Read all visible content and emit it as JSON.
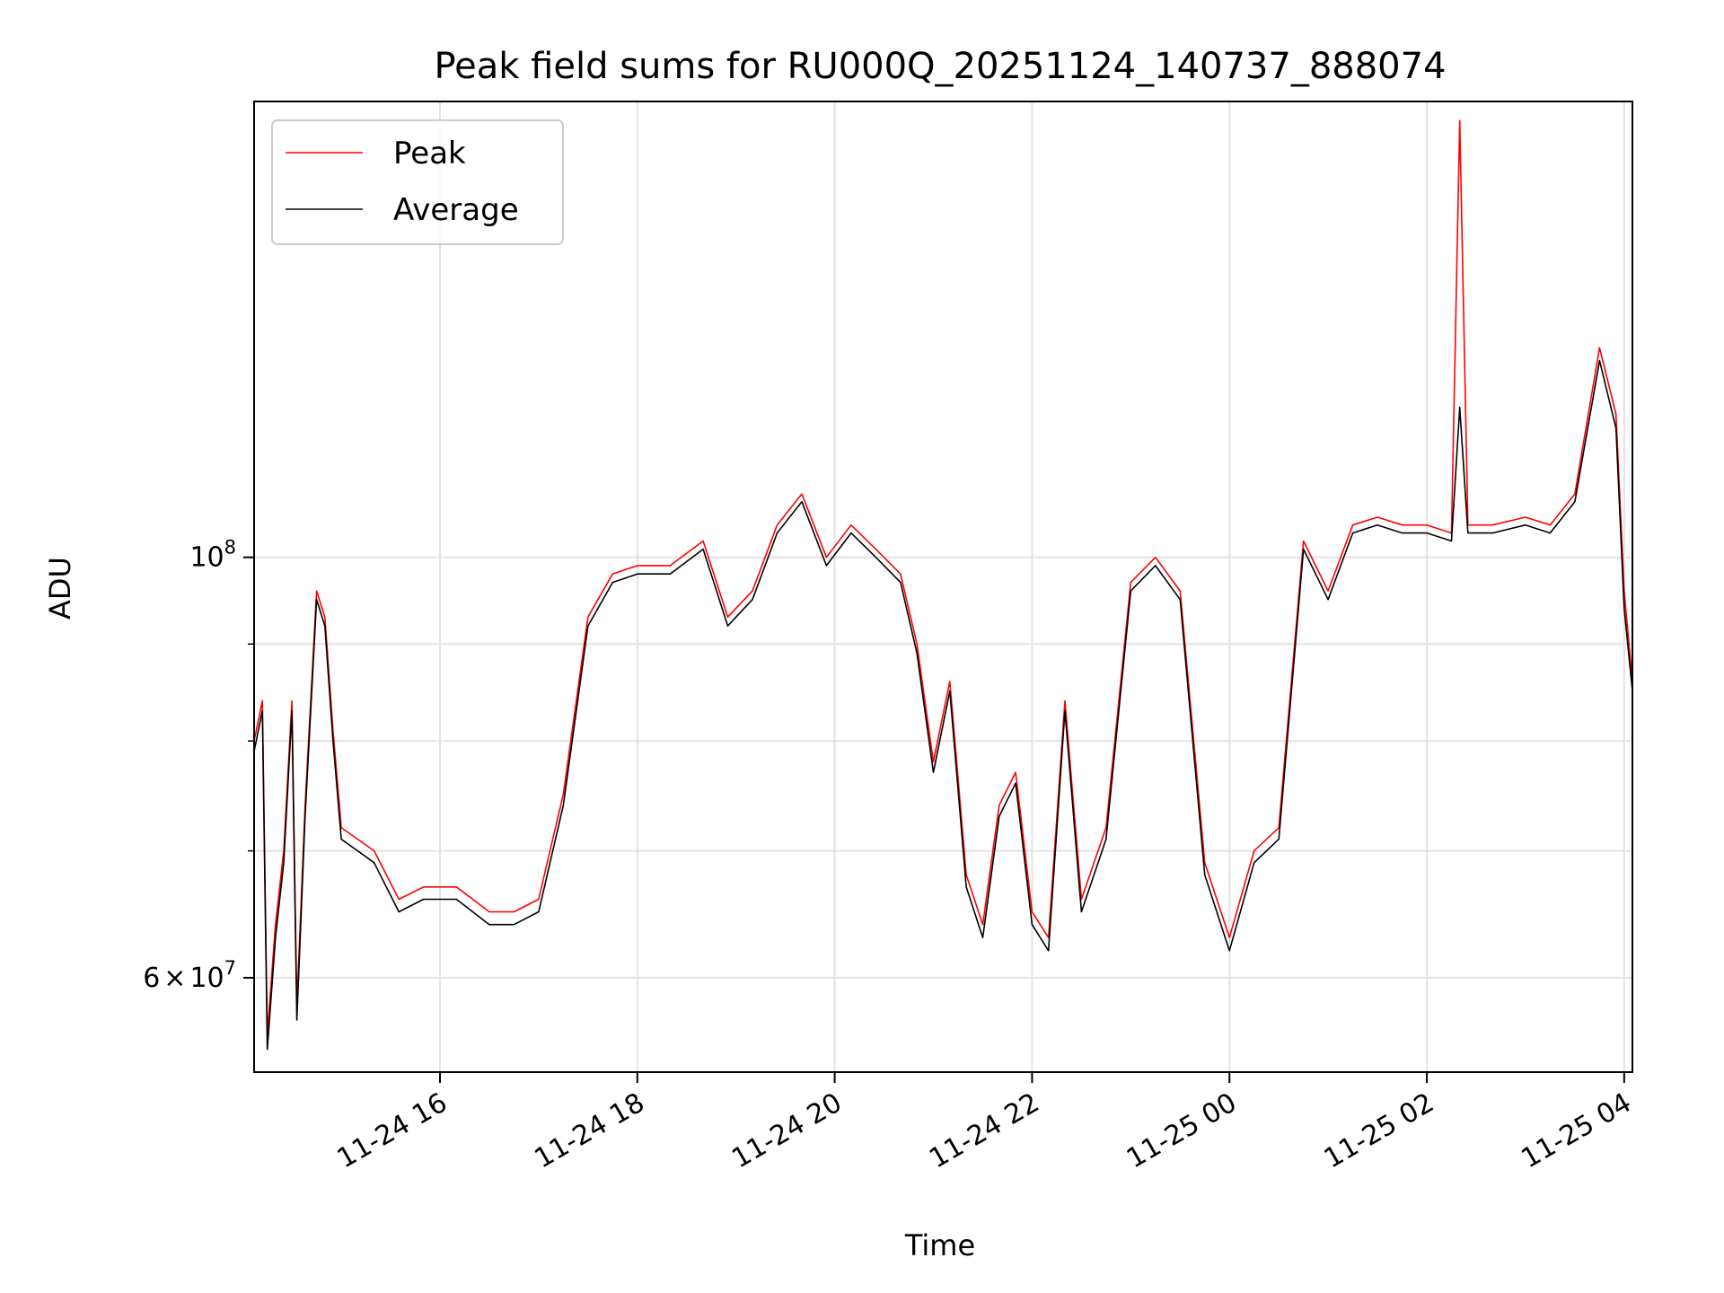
{
  "chart_data": {
    "type": "line",
    "title": "Peak field sums for RU000Q_20251124_140737_888074",
    "xlabel": "Time",
    "ylabel": "ADU",
    "yscale": "log",
    "ylim": [
      53500000,
      174000000
    ],
    "xlim": [
      "11-24 14:07",
      "11-25 04:05"
    ],
    "x_ticks": [
      "11-24 16",
      "11-24 18",
      "11-24 20",
      "11-24 22",
      "11-25 00",
      "11-25 02",
      "11-25 04"
    ],
    "y_major_ticks": [
      {
        "value": 100000000,
        "label_base": "10",
        "label_exp": "8"
      },
      {
        "value": 60000000,
        "label_mant": "6",
        "label_times": "×",
        "label_base": "10",
        "label_exp": "7"
      }
    ],
    "y_minor_ticks": [
      60000000,
      70000000,
      80000000,
      90000000,
      100000000
    ],
    "grid": true,
    "legend_position": "upper-left",
    "x": [
      "11-24 14:07",
      "11-24 14:12",
      "11-24 14:15",
      "11-24 14:20",
      "11-24 14:25",
      "11-24 14:30",
      "11-24 14:33",
      "11-24 14:38",
      "11-24 14:45",
      "11-24 14:50",
      "11-24 14:55",
      "11-24 15:00",
      "11-24 15:10",
      "11-24 15:20",
      "11-24 15:35",
      "11-24 15:50",
      "11-24 16:10",
      "11-24 16:30",
      "11-24 16:45",
      "11-24 17:00",
      "11-24 17:15",
      "11-24 17:30",
      "11-24 17:45",
      "11-24 18:00",
      "11-24 18:20",
      "11-24 18:40",
      "11-24 18:55",
      "11-24 19:10",
      "11-24 19:25",
      "11-24 19:40",
      "11-24 19:55",
      "11-24 20:10",
      "11-24 20:25",
      "11-24 20:40",
      "11-24 20:50",
      "11-24 21:00",
      "11-24 21:10",
      "11-24 21:20",
      "11-24 21:30",
      "11-24 21:40",
      "11-24 21:50",
      "11-24 22:00",
      "11-24 22:10",
      "11-24 22:20",
      "11-24 22:30",
      "11-24 22:45",
      "11-24 23:00",
      "11-24 23:15",
      "11-24 23:30",
      "11-24 23:45",
      "11-25 00:00",
      "11-25 00:15",
      "11-25 00:30",
      "11-25 00:45",
      "11-25 01:00",
      "11-25 01:15",
      "11-25 01:30",
      "11-25 01:45",
      "11-25 02:00",
      "11-25 02:15",
      "11-25 02:20",
      "11-25 02:25",
      "11-25 02:40",
      "11-25 03:00",
      "11-25 03:15",
      "11-25 03:30",
      "11-25 03:45",
      "11-25 03:55",
      "11-25 04:00",
      "11-25 04:05"
    ],
    "series": [
      {
        "name": "Peak",
        "color": "#ff0000",
        "values": [
          80000000,
          84000000,
          56000000,
          64000000,
          70000000,
          84000000,
          58000000,
          74000000,
          96000000,
          93000000,
          81000000,
          72000000,
          71000000,
          70000000,
          66000000,
          67000000,
          67000000,
          65000000,
          65000000,
          66000000,
          75000000,
          93000000,
          98000000,
          99000000,
          99000000,
          102000000,
          93000000,
          96000000,
          104000000,
          108000000,
          100000000,
          104000000,
          101000000,
          98000000,
          90000000,
          78000000,
          86000000,
          68000000,
          64000000,
          74000000,
          77000000,
          65000000,
          63000000,
          84000000,
          66000000,
          72000000,
          97000000,
          100000000,
          96000000,
          69000000,
          63000000,
          70000000,
          72000000,
          102000000,
          96000000,
          104000000,
          105000000,
          104000000,
          104000000,
          103000000,
          170000000,
          104000000,
          104000000,
          105000000,
          104000000,
          108000000,
          129000000,
          119000000,
          96000000,
          86000000
        ]
      },
      {
        "name": "Average",
        "color": "#000000",
        "values": [
          79000000,
          83000000,
          55000000,
          63000000,
          69000000,
          83000000,
          57000000,
          73000000,
          95000000,
          92000000,
          80000000,
          71000000,
          70000000,
          69000000,
          65000000,
          66000000,
          66000000,
          64000000,
          64000000,
          65000000,
          74000000,
          92000000,
          97000000,
          98000000,
          98000000,
          101000000,
          92000000,
          95000000,
          103000000,
          107000000,
          99000000,
          103000000,
          100000000,
          97000000,
          89000000,
          77000000,
          85000000,
          67000000,
          63000000,
          73000000,
          76000000,
          64000000,
          62000000,
          83000000,
          65000000,
          71000000,
          96000000,
          99000000,
          95000000,
          68000000,
          62000000,
          69000000,
          71000000,
          101000000,
          95000000,
          103000000,
          104000000,
          103000000,
          103000000,
          102000000,
          120000000,
          103000000,
          103000000,
          104000000,
          103000000,
          107000000,
          127000000,
          117000000,
          94000000,
          85000000
        ]
      }
    ]
  }
}
